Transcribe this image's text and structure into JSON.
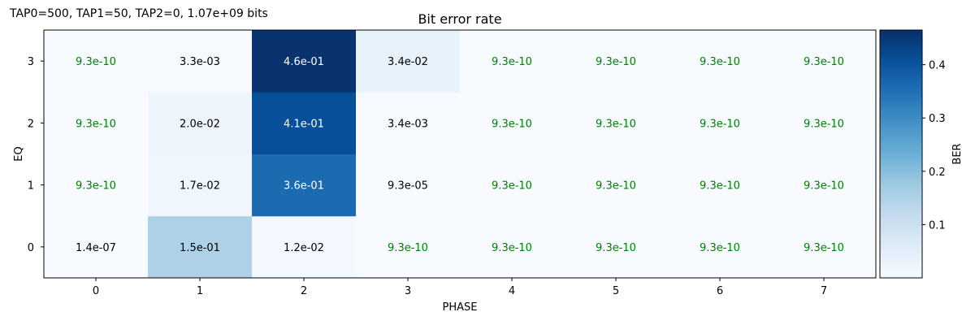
{
  "header": {
    "run_info": "TAP0=500, TAP1=50, TAP2=0, 1.07e+09 bits"
  },
  "chart_data": {
    "type": "heatmap",
    "title": "Bit error rate",
    "xlabel": "PHASE",
    "ylabel": "EQ",
    "x": [
      0,
      1,
      2,
      3,
      4,
      5,
      6,
      7
    ],
    "y": [
      0,
      1,
      2,
      3
    ],
    "values": [
      [
        1.4e-07,
        0.15,
        0.012,
        9.3e-10,
        9.3e-10,
        9.3e-10,
        9.3e-10,
        9.3e-10
      ],
      [
        9.3e-10,
        0.017,
        0.36,
        9.3e-05,
        9.3e-10,
        9.3e-10,
        9.3e-10,
        9.3e-10
      ],
      [
        9.3e-10,
        0.02,
        0.41,
        0.0034,
        9.3e-10,
        9.3e-10,
        9.3e-10,
        9.3e-10
      ],
      [
        9.3e-10,
        0.0033,
        0.46,
        0.034,
        9.3e-10,
        9.3e-10,
        9.3e-10,
        9.3e-10
      ]
    ],
    "labels": [
      [
        "1.4e-07",
        "1.5e-01",
        "1.2e-02",
        "9.3e-10",
        "9.3e-10",
        "9.3e-10",
        "9.3e-10",
        "9.3e-10"
      ],
      [
        "9.3e-10",
        "1.7e-02",
        "3.6e-01",
        "9.3e-05",
        "9.3e-10",
        "9.3e-10",
        "9.3e-10",
        "9.3e-10"
      ],
      [
        "9.3e-10",
        "2.0e-02",
        "4.1e-01",
        "3.4e-03",
        "9.3e-10",
        "9.3e-10",
        "9.3e-10",
        "9.3e-10"
      ],
      [
        "9.3e-10",
        "3.3e-03",
        "4.6e-01",
        "3.4e-02",
        "9.3e-10",
        "9.3e-10",
        "9.3e-10",
        "9.3e-10"
      ]
    ],
    "floor_value": 9.3e-10,
    "floor_label_color": "#008000",
    "colorbar": {
      "label": "BER",
      "ticks": [
        0.1,
        0.2,
        0.3,
        0.4
      ],
      "tick_labels": [
        "0.1",
        "0.2",
        "0.3",
        "0.4"
      ],
      "vmin": 0.0,
      "vmax": 0.465,
      "colormap": "Blues"
    }
  }
}
